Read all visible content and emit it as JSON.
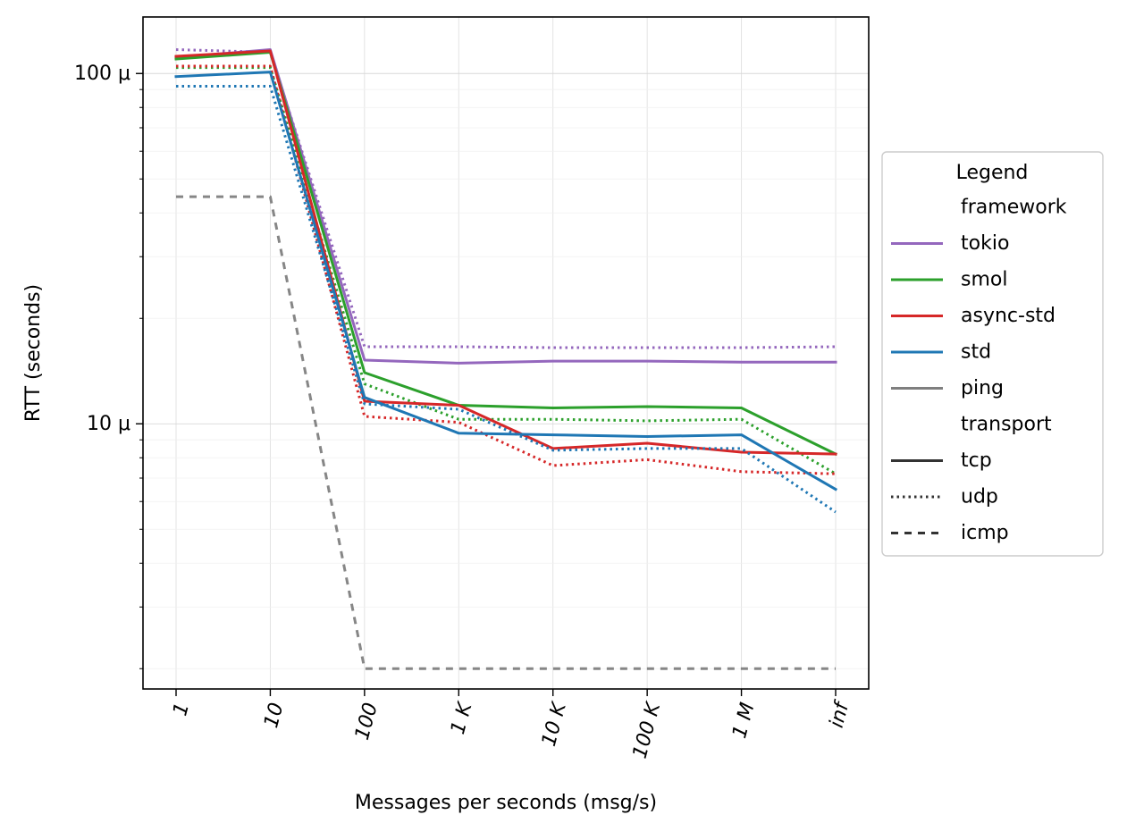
{
  "chart_data": {
    "type": "line",
    "xlabel": "Messages per seconds (msg/s)",
    "ylabel": "RTT (seconds)",
    "x": [
      "1",
      "10",
      "100",
      "1 K",
      "10 K",
      "100 K",
      "1 M",
      "inf"
    ],
    "y_scale": "log",
    "ylim_microseconds": [
      1.75,
      145
    ],
    "y_ticks": [
      {
        "value": 10,
        "label": "10 μ"
      },
      {
        "value": 100,
        "label": "100 μ"
      }
    ],
    "grid": true,
    "legend": {
      "title": "Legend",
      "placement": "right",
      "framework_header": "framework",
      "transport_header": "transport",
      "frameworks": [
        {
          "label": "tokio",
          "color": "#9467bd"
        },
        {
          "label": "smol",
          "color": "#2ca02c"
        },
        {
          "label": "async-std",
          "color": "#d62728"
        },
        {
          "label": "std",
          "color": "#1f77b4"
        },
        {
          "label": "ping",
          "color": "#7f7f7f"
        }
      ],
      "transports": [
        {
          "label": "tcp",
          "style": "solid"
        },
        {
          "label": "udp",
          "style": "dotted"
        },
        {
          "label": "icmp",
          "style": "dashed"
        }
      ]
    },
    "series": [
      {
        "framework": "tokio",
        "transport": "tcp",
        "color": "#9467bd",
        "values": [
          111,
          117,
          15.2,
          14.9,
          15.1,
          15.1,
          15.0,
          15.0
        ]
      },
      {
        "framework": "tokio",
        "transport": "udp",
        "color": "#9467bd",
        "values": [
          117,
          115,
          16.6,
          16.6,
          16.5,
          16.5,
          16.5,
          16.6
        ]
      },
      {
        "framework": "smol",
        "transport": "tcp",
        "color": "#2ca02c",
        "values": [
          110,
          115,
          14.0,
          11.3,
          11.1,
          11.2,
          11.1,
          8.2
        ]
      },
      {
        "framework": "smol",
        "transport": "udp",
        "color": "#2ca02c",
        "values": [
          104,
          104,
          13.0,
          10.3,
          10.3,
          10.2,
          10.3,
          7.2
        ]
      },
      {
        "framework": "async-std",
        "transport": "tcp",
        "color": "#d62728",
        "values": [
          112,
          116,
          11.6,
          11.3,
          8.5,
          8.8,
          8.3,
          8.2
        ]
      },
      {
        "framework": "async-std",
        "transport": "udp",
        "color": "#d62728",
        "values": [
          105,
          105,
          10.5,
          10.1,
          7.6,
          7.9,
          7.3,
          7.2
        ]
      },
      {
        "framework": "std",
        "transport": "tcp",
        "color": "#1f77b4",
        "values": [
          98,
          101,
          11.9,
          9.4,
          9.3,
          9.2,
          9.3,
          6.5
        ]
      },
      {
        "framework": "std",
        "transport": "udp",
        "color": "#1f77b4",
        "values": [
          92,
          92,
          11.4,
          11.0,
          8.4,
          8.5,
          8.5,
          5.6
        ]
      },
      {
        "framework": "ping",
        "transport": "icmp",
        "color": "#7f7f7f",
        "values": [
          44.5,
          44.5,
          2.0,
          2.0,
          2.0,
          2.0,
          2.0,
          2.0
        ]
      }
    ]
  }
}
